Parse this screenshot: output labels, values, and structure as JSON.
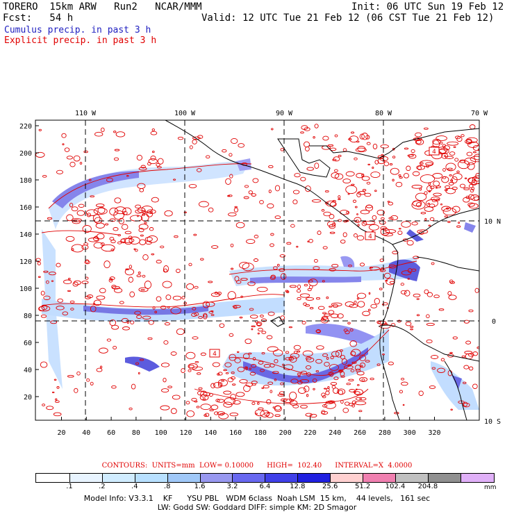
{
  "header": {
    "model": "TORERO  15km ARW   Run2   NCAR/MMM",
    "init": "Init: 06 UTC Sun 19 Feb 12",
    "forecast": "Fcst:   54 h",
    "valid": "Valid: 12 UTC Tue 21 Feb 12 (06 CST Tue 21 Feb 12)"
  },
  "legend": {
    "cumulus": "Cumulus precip. in past 3 h",
    "explicit": "Explicit precip. in past 3 h",
    "cumulus_color": "#2020c0",
    "explicit_color": "#e00000"
  },
  "map": {
    "longitude_labels": [
      "110 W",
      "100 W",
      "90 W",
      "80 W",
      "70 W"
    ],
    "latitude_labels": [
      "10 N",
      "0",
      "10 S"
    ],
    "y_ticks": [
      "220",
      "200",
      "180",
      "160",
      "140",
      "120",
      "100",
      "80",
      "60",
      "40",
      "20"
    ],
    "x_ticks": [
      "20",
      "40",
      "60",
      "80",
      "100",
      "120",
      "140",
      "160",
      "180",
      "200",
      "220",
      "240",
      "260",
      "280",
      "300",
      "320"
    ],
    "box_labels": [
      "4",
      "4",
      "4"
    ],
    "land_color": "#ffffff",
    "contour_color": "#e00000",
    "grid_color": "#000000"
  },
  "contour_caption": "CONTOURS:  UNITS=mm  LOW= 0.10000      HIGH=  102.40      INTERVAL=X  4.0000",
  "colorbar": {
    "colors": [
      "#ffffff",
      "#e8f4ff",
      "#d0ecff",
      "#b8e0ff",
      "#a0c8f8",
      "#9898f0",
      "#6868f0",
      "#4040e8",
      "#2020e0",
      "#ffd0d0",
      "#f080b0",
      "#c0c0c0",
      "#909090",
      "#e0b0f8"
    ],
    "labels": [
      ".1",
      ".2",
      ".4",
      ".8",
      "1.6",
      "3.2",
      "6.4",
      "12.8",
      "25.6",
      "51.2",
      "102.4",
      "204.8"
    ],
    "unit": "mm"
  },
  "model_info": {
    "line1": "Model Info: V3.3.1    KF      YSU PBL   WDM 6class  Noah LSM  15 km,    44 levels,   161 sec",
    "line2": "LW: Godd SW: Goddard DIFF: simple KM: 2D Smagor"
  }
}
